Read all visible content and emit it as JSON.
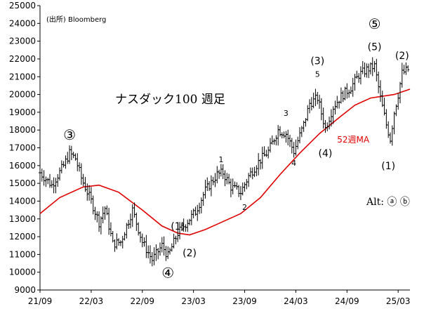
{
  "chart_data": {
    "type": "ohlc",
    "title": "ナスダック100 週足",
    "source_note": "(出所) Bloomberg",
    "y_ticks": [
      9000,
      10000,
      11000,
      12000,
      13000,
      14000,
      15000,
      16000,
      17000,
      18000,
      19000,
      20000,
      21000,
      22000,
      23000,
      24000,
      25000
    ],
    "ylim": [
      9000,
      25000
    ],
    "x_ticks": [
      "21/09",
      "22/03",
      "22/09",
      "23/03",
      "23/09",
      "24/03",
      "24/09",
      "25/03"
    ],
    "xlim": [
      0,
      188
    ],
    "price_path": [
      [
        0,
        15600
      ],
      [
        6,
        14900
      ],
      [
        12,
        16000
      ],
      [
        15,
        16700
      ],
      [
        18,
        16400
      ],
      [
        21,
        15300
      ],
      [
        26,
        14000
      ],
      [
        30,
        12800
      ],
      [
        33,
        13600
      ],
      [
        37,
        11600
      ],
      [
        41,
        11700
      ],
      [
        47,
        13500
      ],
      [
        52,
        11700
      ],
      [
        57,
        10700
      ],
      [
        62,
        11500
      ],
      [
        65,
        10900
      ],
      [
        70,
        12200
      ],
      [
        76,
        13000
      ],
      [
        79,
        13400
      ],
      [
        84,
        14600
      ],
      [
        90,
        15500
      ],
      [
        93,
        15600
      ],
      [
        97,
        14800
      ],
      [
        102,
        14500
      ],
      [
        106,
        15400
      ],
      [
        111,
        16200
      ],
      [
        116,
        16800
      ],
      [
        121,
        18000
      ],
      [
        125,
        17800
      ],
      [
        129,
        16800
      ],
      [
        134,
        18300
      ],
      [
        137,
        19500
      ],
      [
        141,
        19800
      ],
      [
        145,
        18100
      ],
      [
        149,
        19300
      ],
      [
        153,
        19900
      ],
      [
        158,
        20400
      ],
      [
        162,
        21100
      ],
      [
        166,
        21400
      ],
      [
        170,
        21600
      ],
      [
        173,
        19800
      ],
      [
        176,
        18300
      ],
      [
        178,
        17500
      ],
      [
        180,
        19000
      ],
      [
        182,
        20000
      ],
      [
        184,
        21200
      ],
      [
        187,
        21400
      ]
    ],
    "ma_series": {
      "name": "52週MA",
      "color": "#e00000",
      "points": [
        [
          0,
          13300
        ],
        [
          10,
          14200
        ],
        [
          22,
          14800
        ],
        [
          30,
          14900
        ],
        [
          40,
          14500
        ],
        [
          52,
          13500
        ],
        [
          62,
          12600
        ],
        [
          70,
          12200
        ],
        [
          76,
          12100
        ],
        [
          84,
          12400
        ],
        [
          92,
          12800
        ],
        [
          102,
          13300
        ],
        [
          112,
          14200
        ],
        [
          122,
          15500
        ],
        [
          132,
          16700
        ],
        [
          142,
          17800
        ],
        [
          152,
          18700
        ],
        [
          160,
          19400
        ],
        [
          168,
          19800
        ],
        [
          174,
          19900
        ],
        [
          180,
          20000
        ],
        [
          188,
          20300
        ]
      ]
    },
    "wave_labels": [
      {
        "text": "③",
        "x": 15,
        "y": 17450,
        "size": "big"
      },
      {
        "text": "④",
        "x": 65,
        "y": 9700,
        "size": "big"
      },
      {
        "text": "⑤",
        "x": 170,
        "y": 23700,
        "size": "big"
      },
      {
        "text": "(1)",
        "x": 70,
        "y": 12400,
        "size": "mid"
      },
      {
        "text": "(2)",
        "x": 76,
        "y": 10900,
        "size": "mid"
      },
      {
        "text": "(3)",
        "x": 141,
        "y": 21700,
        "size": "mid"
      },
      {
        "text": "(4)",
        "x": 145,
        "y": 16500,
        "size": "mid"
      },
      {
        "text": "(5)",
        "x": 170,
        "y": 22500,
        "size": "mid"
      },
      {
        "text": "(1)",
        "x": 177,
        "y": 15800,
        "size": "mid"
      },
      {
        "text": "(2)",
        "x": 184,
        "y": 22000,
        "size": "mid"
      },
      {
        "text": "1",
        "x": 92,
        "y": 16200,
        "size": "small"
      },
      {
        "text": "2",
        "x": 104,
        "y": 13500,
        "size": "small"
      },
      {
        "text": "3",
        "x": 125,
        "y": 18800,
        "size": "small"
      },
      {
        "text": "4",
        "x": 129,
        "y": 16000,
        "size": "small"
      },
      {
        "text": "5",
        "x": 141,
        "y": 21000,
        "size": "small"
      }
    ],
    "alt_label": "Alt: ⓐ ⓑ"
  }
}
